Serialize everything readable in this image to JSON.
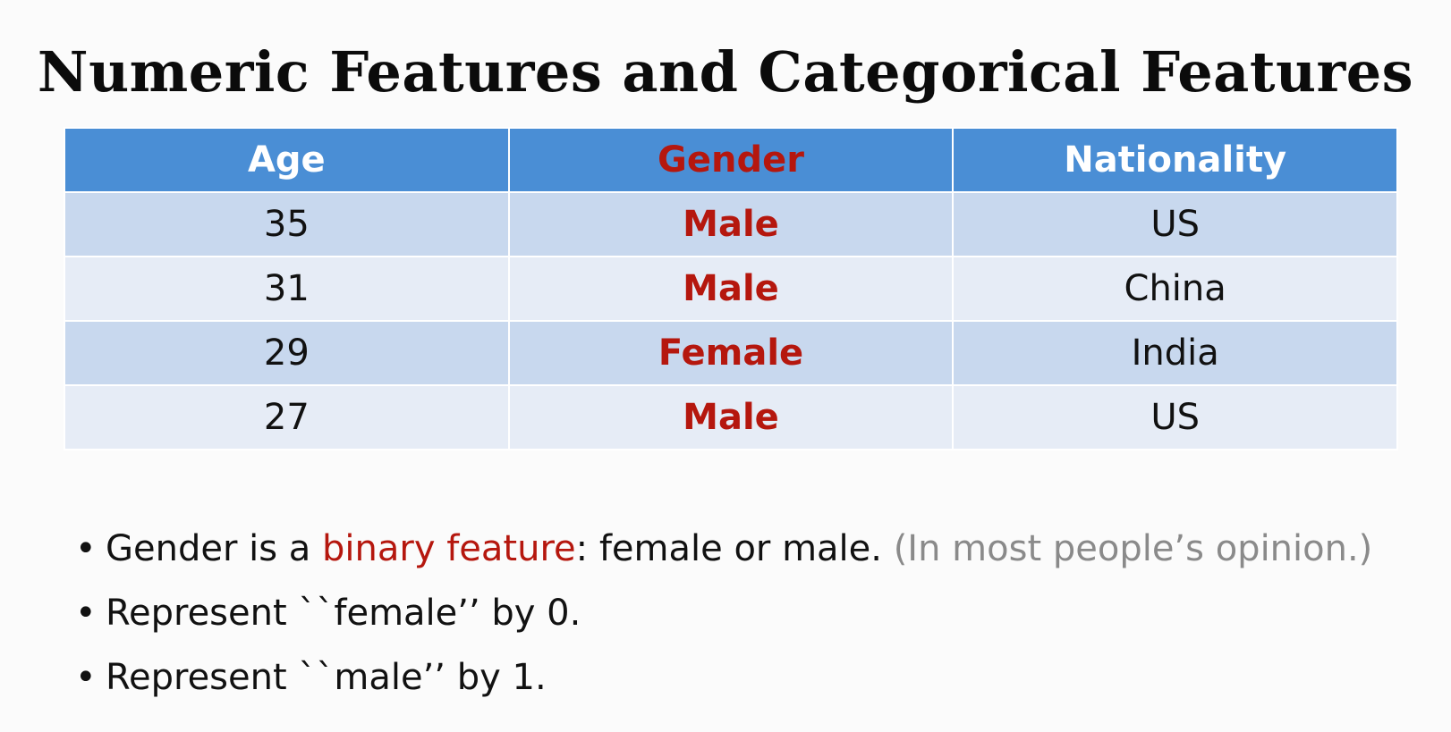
{
  "title": "Numeric Features and Categorical Features",
  "table": {
    "headers": [
      "Age",
      "Gender",
      "Nationality"
    ],
    "rows": [
      [
        "35",
        "Male",
        "US"
      ],
      [
        "31",
        "Male",
        "China"
      ],
      [
        "29",
        "Female",
        "India"
      ],
      [
        "27",
        "Male",
        "US"
      ]
    ]
  },
  "bullets": {
    "symbol": "•",
    "b1": {
      "before": "Gender is a ",
      "highlight": "binary feature",
      "after": ": female or male. ",
      "note": "(In most people’s opinion.)"
    },
    "b2": "Represent ``female’’ by 0.",
    "b3": "Represent ``male’’ by 1."
  },
  "colors": {
    "header_bg": "#4a8ed5",
    "row_dark": "#c8d8ee",
    "row_light": "#e6ecf6",
    "accent_red": "#b5170e",
    "note_gray": "#8a8a8a"
  }
}
